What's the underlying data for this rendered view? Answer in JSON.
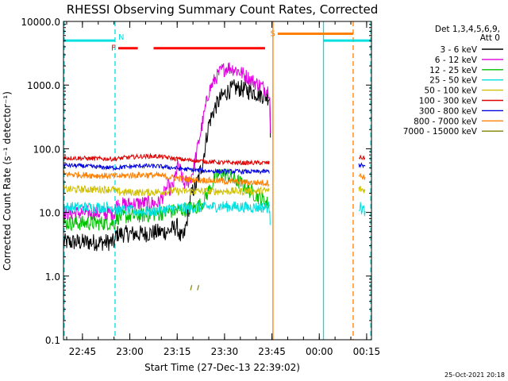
{
  "chart_data": {
    "type": "line",
    "title": "RHESSI Observing Summary Count Rates, Corrected",
    "xlabel": "Start Time (27-Dec-13 22:39:02)",
    "ylabel": "Corrected Count Rate (s⁻¹ detector⁻¹)",
    "ylog": true,
    "ylim": [
      0.1,
      10000
    ],
    "xlim_minutes": [
      -0.03,
      97.5
    ],
    "x_tick_labels": [
      "22:45",
      "23:00",
      "23:15",
      "23:30",
      "23:45",
      "00:00",
      "00:15"
    ],
    "x_tick_minutes": [
      5.97,
      20.97,
      35.97,
      50.97,
      65.97,
      80.97,
      95.97
    ],
    "y_tick_labels": [
      "0.1",
      "1.0",
      "10.0",
      "100.0",
      "1000.0",
      "10000.0"
    ],
    "y_tick_values": [
      0.1,
      1,
      10,
      100,
      1000,
      10000
    ],
    "legend": {
      "header": [
        "Det 1,3,4,5,6,9,",
        "Att 0"
      ],
      "placement": "right"
    },
    "series": [
      {
        "name": "3 - 6 keV",
        "color": "#000000",
        "points": [
          [
            0,
            3.4
          ],
          [
            16.3,
            3.4
          ],
          [
            16.6,
            4.6
          ],
          [
            25,
            4.6
          ],
          [
            30,
            4.9
          ],
          [
            33,
            5.0
          ],
          [
            35,
            5.7
          ],
          [
            36,
            6.0
          ],
          [
            37,
            4.0
          ],
          [
            38,
            4.0
          ],
          [
            39,
            7.0
          ],
          [
            40,
            15
          ],
          [
            41,
            23
          ],
          [
            42,
            26
          ],
          [
            44,
            60
          ],
          [
            46,
            250
          ],
          [
            48,
            450
          ],
          [
            50,
            650
          ],
          [
            52,
            800
          ],
          [
            54,
            900
          ],
          [
            56,
            880
          ],
          [
            58,
            830
          ],
          [
            60,
            780
          ],
          [
            62,
            720
          ],
          [
            64,
            670
          ],
          [
            65.3,
            640
          ],
          [
            65.5,
            150
          ]
        ]
      },
      {
        "name": "6 - 12 keV",
        "color": "#e000e0",
        "points": [
          [
            0,
            9.8
          ],
          [
            16.3,
            9.8
          ],
          [
            16.6,
            13
          ],
          [
            25,
            14
          ],
          [
            30,
            14
          ],
          [
            32,
            20
          ],
          [
            33,
            26
          ],
          [
            34,
            22
          ],
          [
            35,
            30
          ],
          [
            36,
            52
          ],
          [
            37,
            45
          ],
          [
            38,
            28
          ],
          [
            40,
            32
          ],
          [
            41,
            46
          ],
          [
            42,
            80
          ],
          [
            44,
            260
          ],
          [
            46,
            800
          ],
          [
            48,
            1250
          ],
          [
            50,
            1700
          ],
          [
            52,
            1900
          ],
          [
            54,
            1800
          ],
          [
            56,
            1600
          ],
          [
            58,
            1350
          ],
          [
            60,
            1150
          ],
          [
            62,
            1000
          ],
          [
            64,
            880
          ],
          [
            65.3,
            800
          ],
          [
            65.5,
            175
          ]
        ]
      },
      {
        "name": "12 - 25 keV",
        "color": "#00c000",
        "points": [
          [
            0,
            6.8
          ],
          [
            16.3,
            6.8
          ],
          [
            16.6,
            8.4
          ],
          [
            25,
            9.0
          ],
          [
            30,
            9.5
          ],
          [
            35,
            10.5
          ],
          [
            38,
            11
          ],
          [
            42,
            12
          ],
          [
            44,
            14
          ],
          [
            46,
            22
          ],
          [
            48,
            34
          ],
          [
            50,
            42
          ],
          [
            52,
            38
          ],
          [
            54,
            33
          ],
          [
            56,
            29
          ],
          [
            58,
            24
          ],
          [
            60,
            20
          ],
          [
            63,
            16
          ],
          [
            65.3,
            13
          ]
        ]
      },
      {
        "name": "25 - 50 keV",
        "color": "#00e0e0",
        "points": [
          [
            0,
            12
          ],
          [
            16.3,
            12
          ],
          [
            16.6,
            11
          ],
          [
            25,
            10.2
          ],
          [
            30,
            10.7
          ],
          [
            35,
            11.5
          ],
          [
            40,
            11.8
          ],
          [
            45,
            12.2
          ],
          [
            50,
            12.5
          ],
          [
            55,
            12.2
          ],
          [
            60,
            12
          ],
          [
            65.3,
            12
          ],
          [
            65.5,
            4.5
          ],
          [
            93.5,
            12.5
          ],
          [
            95.5,
            10.5
          ]
        ]
      },
      {
        "name": "50 - 100 keV",
        "color": "#d0c000",
        "points": [
          [
            0,
            23
          ],
          [
            16.3,
            23
          ],
          [
            16.6,
            21
          ],
          [
            25,
            20.5
          ],
          [
            30,
            21
          ],
          [
            35,
            21.5
          ],
          [
            40,
            21.5
          ],
          [
            45,
            21.5
          ],
          [
            50,
            21.5
          ],
          [
            55,
            21.5
          ],
          [
            60,
            21.5
          ],
          [
            65.3,
            22
          ],
          [
            93.5,
            23.5
          ],
          [
            95.5,
            22
          ]
        ]
      },
      {
        "name": "100 - 300 keV",
        "color": "#e00000",
        "points": [
          [
            0,
            72
          ],
          [
            5,
            71
          ],
          [
            10,
            70
          ],
          [
            16.3,
            69
          ],
          [
            20,
            73
          ],
          [
            25,
            76
          ],
          [
            30,
            76
          ],
          [
            35,
            70
          ],
          [
            40,
            66
          ],
          [
            45,
            63
          ],
          [
            50,
            61
          ],
          [
            55,
            60
          ],
          [
            60,
            60
          ],
          [
            65.3,
            60
          ],
          [
            93.5,
            74
          ],
          [
            95.5,
            71
          ]
        ]
      },
      {
        "name": "300 - 800 keV",
        "color": "#0000e0",
        "points": [
          [
            0,
            55
          ],
          [
            5,
            54
          ],
          [
            10,
            52
          ],
          [
            16.3,
            50
          ],
          [
            20,
            52
          ],
          [
            25,
            54
          ],
          [
            30,
            53
          ],
          [
            35,
            50
          ],
          [
            40,
            47
          ],
          [
            45,
            45
          ],
          [
            50,
            44
          ],
          [
            55,
            44
          ],
          [
            60,
            43.5
          ],
          [
            65.3,
            44
          ],
          [
            93.5,
            56
          ],
          [
            95.5,
            53
          ]
        ]
      },
      {
        "name": "800 - 7000 keV",
        "color": "#ff8000",
        "points": [
          [
            0,
            40
          ],
          [
            5,
            39
          ],
          [
            10,
            38
          ],
          [
            16.3,
            37
          ],
          [
            20,
            38
          ],
          [
            25,
            39
          ],
          [
            30,
            38
          ],
          [
            35,
            35
          ],
          [
            40,
            33
          ],
          [
            45,
            32
          ],
          [
            50,
            31
          ],
          [
            55,
            30
          ],
          [
            60,
            29.5
          ],
          [
            65.3,
            29
          ],
          [
            93.5,
            38
          ],
          [
            95.5,
            36
          ]
        ]
      },
      {
        "name": "7000 - 15000 keV",
        "color": "#808000",
        "points": [
          [
            40.2,
            0.6
          ],
          [
            40.6,
            0.72
          ],
          [
            42.4,
            0.6
          ],
          [
            42.8,
            0.72
          ]
        ]
      }
    ],
    "flag_bars": [
      {
        "label": "N",
        "color": "#00e0e0",
        "y": 5000,
        "segments": [
          [
            0,
            16.3
          ],
          [
            82.3,
            97.3
          ]
        ]
      },
      {
        "label": "F",
        "color": "#ff0000",
        "y": 3800,
        "segments": [
          [
            17.3,
            23.5
          ],
          [
            28.5,
            63.8
          ]
        ]
      },
      {
        "label": "S",
        "color": "#ff8000",
        "y": 6400,
        "segments": [
          [
            67.8,
            91.7
          ]
        ]
      }
    ],
    "vertical_lines": [
      {
        "minutes": 0.2,
        "color": "#00e0e0",
        "style": "dashed"
      },
      {
        "minutes": 16.3,
        "color": "#00e0e0",
        "style": "dashed"
      },
      {
        "minutes": 66.3,
        "color": "#ff8000",
        "style": "solid"
      },
      {
        "minutes": 82.3,
        "color": "#00e0e0",
        "style": "solid"
      },
      {
        "minutes": 91.7,
        "color": "#ff8000",
        "style": "dashed"
      },
      {
        "minutes": 97.3,
        "color": "#00e0e0",
        "style": "dashed"
      }
    ],
    "timestamp": "25-Oct-2021 20:18"
  }
}
